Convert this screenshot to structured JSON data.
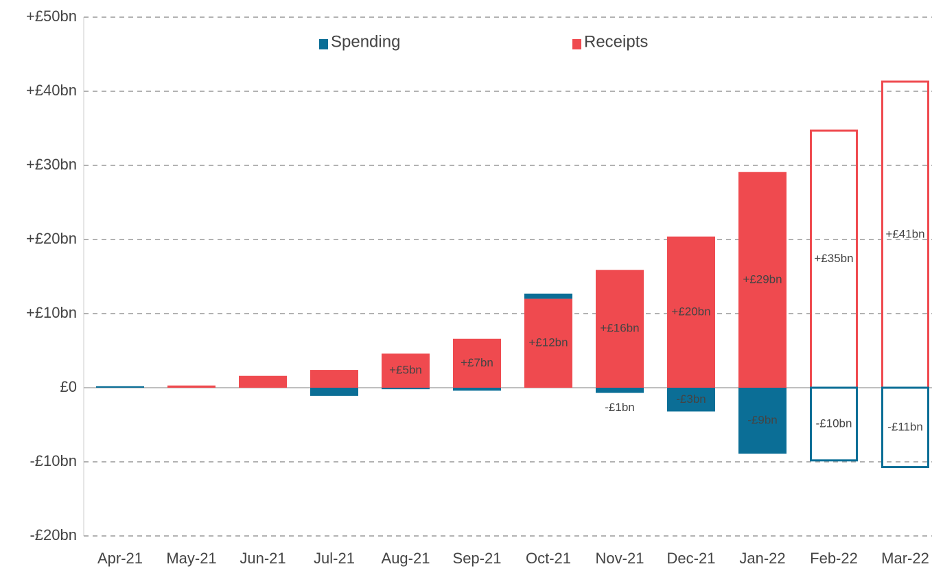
{
  "chart_data": {
    "type": "bar",
    "categories": [
      "Apr-21",
      "May-21",
      "Jun-21",
      "Jul-21",
      "Aug-21",
      "Sep-21",
      "Oct-21",
      "Nov-21",
      "Dec-21",
      "Jan-22",
      "Feb-22",
      "Mar-22"
    ],
    "series": [
      {
        "name": "Receipts",
        "color": "#ef4a4f",
        "values": [
          0,
          0.3,
          1.6,
          2.4,
          4.6,
          6.6,
          12.0,
          15.9,
          20.4,
          29.1,
          34.7,
          41.3
        ],
        "value_labels": [
          null,
          null,
          null,
          null,
          "+£5bn",
          "+£7bn",
          "+£12bn",
          "+£16bn",
          "+£20bn",
          "+£29bn",
          "+£35bn",
          "+£41bn"
        ],
        "hollow": [
          false,
          false,
          false,
          false,
          false,
          false,
          false,
          false,
          false,
          false,
          true,
          true
        ]
      },
      {
        "name": "Spending",
        "color": "#0b6e96",
        "values": [
          0.2,
          0,
          0,
          -1.1,
          -0.2,
          -0.4,
          0.7,
          -0.7,
          -3.2,
          -8.9,
          -9.8,
          -10.7
        ],
        "value_labels": [
          null,
          null,
          null,
          null,
          null,
          null,
          null,
          "-£1bn",
          "-£3bn",
          "-£9bn",
          "-£10bn",
          "-£11bn"
        ],
        "hollow": [
          false,
          false,
          false,
          false,
          false,
          false,
          false,
          false,
          false,
          false,
          true,
          true
        ]
      }
    ],
    "ylim": [
      -20,
      50
    ],
    "yticks": [
      {
        "value": -20,
        "label": "-£20bn"
      },
      {
        "value": -10,
        "label": "-£10bn"
      },
      {
        "value": 0,
        "label": "£0"
      },
      {
        "value": 10,
        "label": "+£10bn"
      },
      {
        "value": 20,
        "label": "+£20bn"
      },
      {
        "value": 30,
        "label": "+£30bn"
      },
      {
        "value": 40,
        "label": "+£40bn"
      },
      {
        "value": 50,
        "label": "+£50bn"
      }
    ],
    "grid": true,
    "legend": "top"
  }
}
